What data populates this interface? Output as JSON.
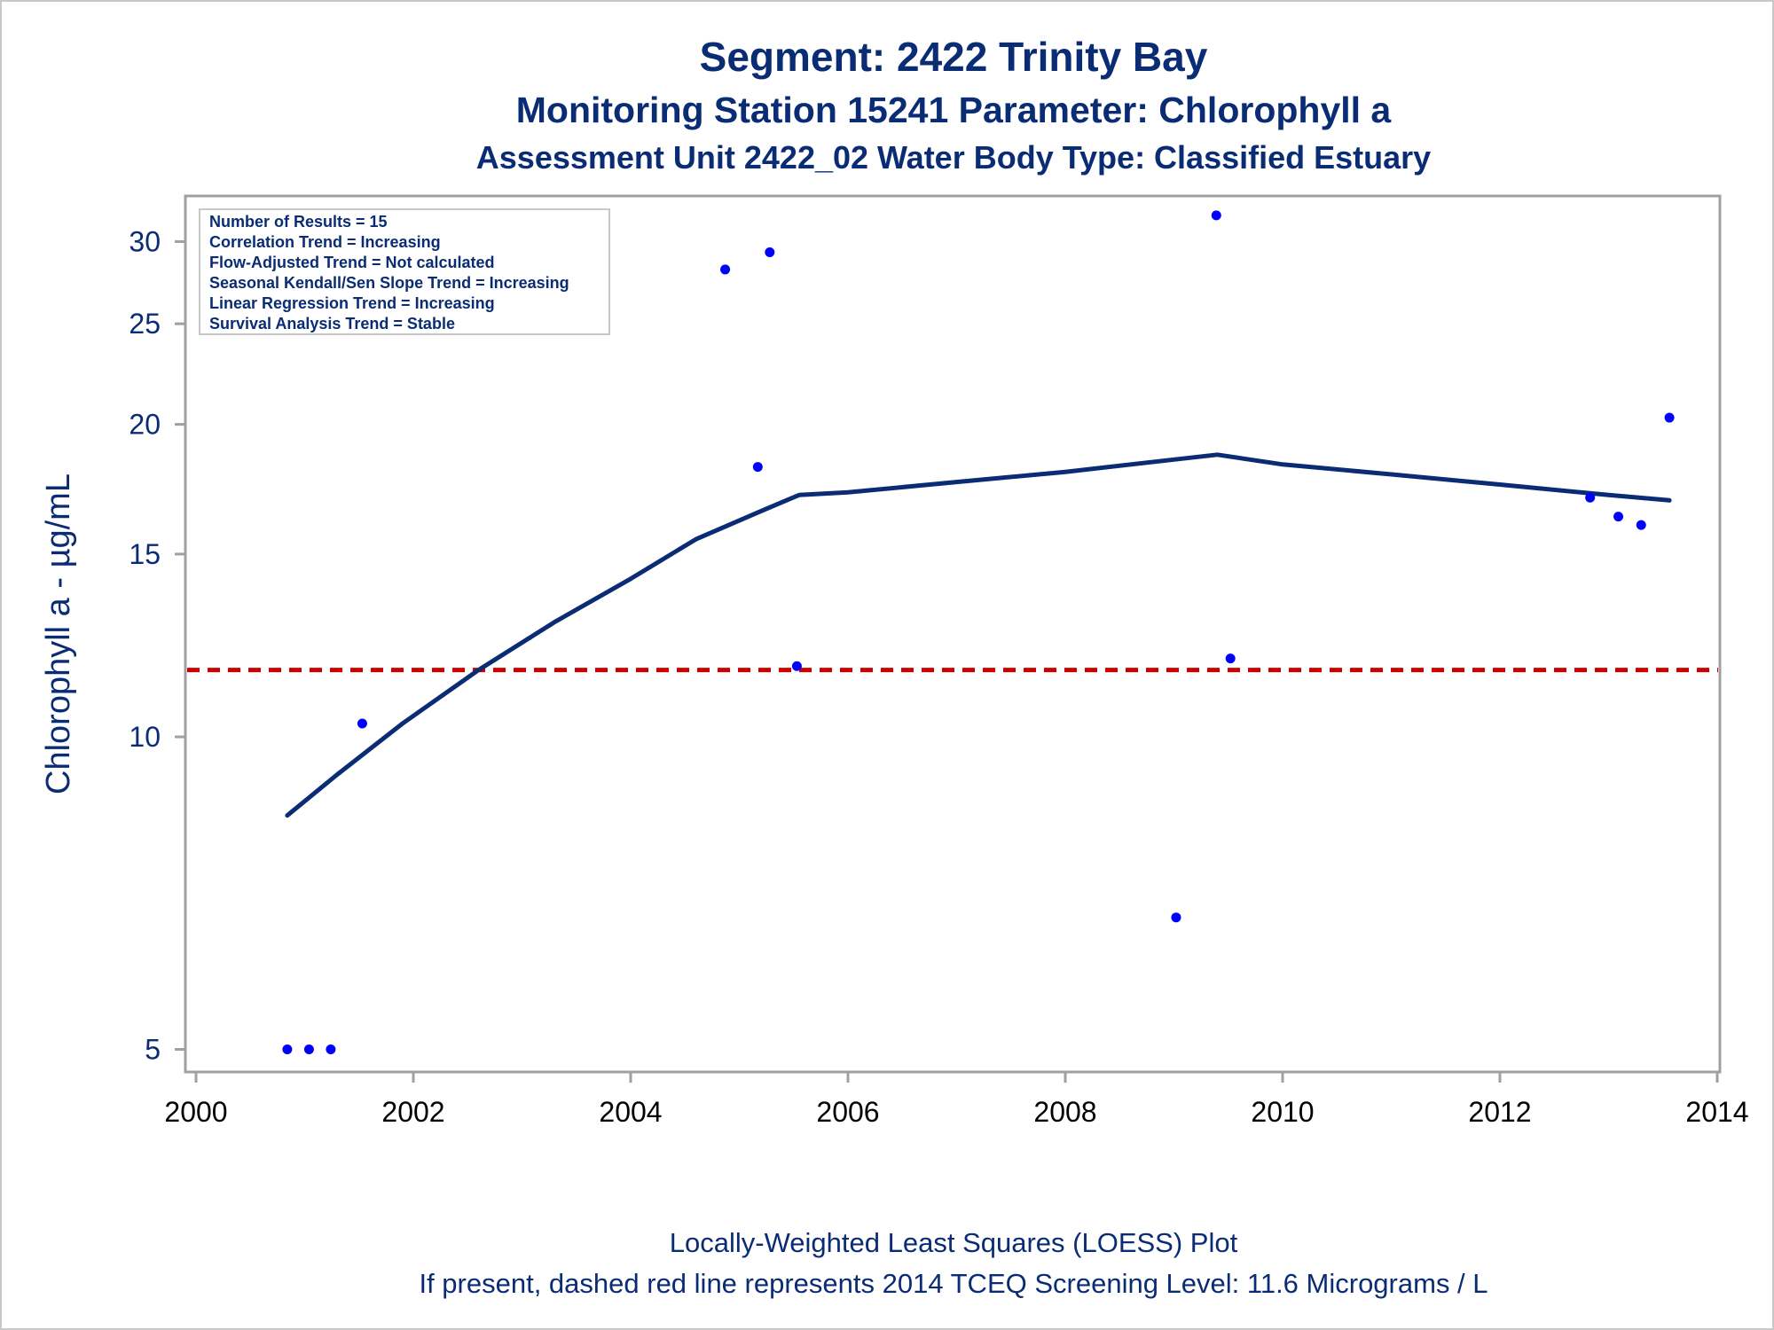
{
  "titles": {
    "line1": "Segment: 2422  Trinity Bay",
    "line2": "Monitoring Station 15241 Parameter: Chlorophyll a",
    "line3": "Assessment Unit 2422_02   Water Body Type: Classified Estuary"
  },
  "footnotes": {
    "line1": "Locally-Weighted Least Squares (LOESS) Plot",
    "line2": "If present, dashed red line represents 2014 TCEQ Screening Level: 11.6 Micrograms / L"
  },
  "inset": {
    "lines": [
      "Number of Results = 15",
      "Correlation Trend = Increasing",
      "Flow-Adjusted Trend = Not calculated",
      "Seasonal Kendall/Sen Slope Trend = Increasing",
      "Linear Regression Trend = Increasing",
      "Survival Analysis Trend = Stable"
    ]
  },
  "colors": {
    "title": "#0a2c74",
    "loess_line": "#0a2c74",
    "points": "#0000ff",
    "screening_line": "#cc0000",
    "axis": "#a0a0a0"
  },
  "chart_data": {
    "type": "scatter",
    "xlabel": "",
    "ylabel": "Chlorophyll a -  µg/mL",
    "y_scale": "log",
    "xlim": [
      2000,
      2014
    ],
    "ylim": [
      4.85,
      33
    ],
    "x_ticks": [
      2000,
      2002,
      2004,
      2006,
      2008,
      2010,
      2012,
      2014
    ],
    "y_ticks": [
      5,
      10,
      15,
      20,
      25,
      30
    ],
    "grid": false,
    "screening_level": {
      "value": 11.6,
      "style": "dashed"
    },
    "series": [
      {
        "type": "scatter",
        "x": [
          2000.84,
          2001.04,
          2001.24,
          2001.53,
          2004.87,
          2005.17,
          2005.28,
          2005.53,
          2009.02,
          2009.39,
          2009.52,
          2012.83,
          2013.09,
          2013.3,
          2013.56
        ],
        "y": [
          5.0,
          5.0,
          5.0,
          10.3,
          28.2,
          18.2,
          29.3,
          11.7,
          6.7,
          31.8,
          11.9,
          17.0,
          16.3,
          16.0,
          20.3
        ]
      },
      {
        "type": "line",
        "x": [
          2000.84,
          2001.3,
          2001.9,
          2002.6,
          2003.3,
          2004.0,
          2004.6,
          2005.2,
          2005.55,
          2006.0,
          2007.0,
          2008.0,
          2009.0,
          2009.4,
          2010.0,
          2011.0,
          2012.0,
          2013.0,
          2013.56
        ],
        "y": [
          8.4,
          9.2,
          10.3,
          11.6,
          12.9,
          14.2,
          15.5,
          16.5,
          17.1,
          17.2,
          17.6,
          18.0,
          18.5,
          18.7,
          18.3,
          17.9,
          17.5,
          17.1,
          16.9
        ]
      }
    ]
  }
}
